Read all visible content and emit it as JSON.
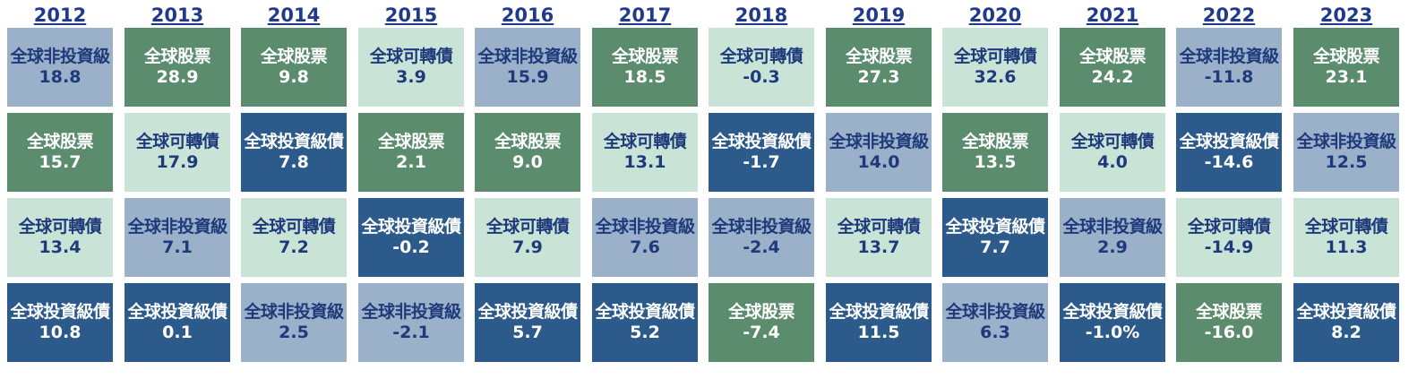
{
  "chart_data": {
    "type": "table",
    "years": [
      "2012",
      "2013",
      "2014",
      "2015",
      "2016",
      "2017",
      "2018",
      "2019",
      "2020",
      "2021",
      "2022",
      "2023"
    ],
    "colors": {
      "全球股票": "#5b8c6e",
      "全球可轉債": "#c9e4d7",
      "全球非投資級": "#9bb0c9",
      "全球投資級債": "#2c5a8a"
    },
    "columns": [
      [
        {
          "name": "全球非投資級",
          "value": "18.8"
        },
        {
          "name": "全球股票",
          "value": "15.7"
        },
        {
          "name": "全球可轉債",
          "value": "13.4"
        },
        {
          "name": "全球投資級債",
          "value": "10.8"
        }
      ],
      [
        {
          "name": "全球股票",
          "value": "28.9"
        },
        {
          "name": "全球可轉債",
          "value": "17.9"
        },
        {
          "name": "全球非投資級",
          "value": "7.1"
        },
        {
          "name": "全球投資級債",
          "value": "0.1"
        }
      ],
      [
        {
          "name": "全球股票",
          "value": "9.8"
        },
        {
          "name": "全球投資級債",
          "value": "7.8"
        },
        {
          "name": "全球可轉債",
          "value": "7.2"
        },
        {
          "name": "全球非投資級",
          "value": "2.5"
        }
      ],
      [
        {
          "name": "全球可轉債",
          "value": "3.9"
        },
        {
          "name": "全球股票",
          "value": "2.1"
        },
        {
          "name": "全球投資級債",
          "value": "-0.2"
        },
        {
          "name": "全球非投資級",
          "value": "-2.1"
        }
      ],
      [
        {
          "name": "全球非投資級",
          "value": "15.9"
        },
        {
          "name": "全球股票",
          "value": "9.0"
        },
        {
          "name": "全球可轉債",
          "value": "7.9"
        },
        {
          "name": "全球投資級債",
          "value": "5.7"
        }
      ],
      [
        {
          "name": "全球股票",
          "value": "18.5"
        },
        {
          "name": "全球可轉債",
          "value": "13.1"
        },
        {
          "name": "全球非投資級",
          "value": "7.6"
        },
        {
          "name": "全球投資級債",
          "value": "5.2"
        }
      ],
      [
        {
          "name": "全球可轉債",
          "value": "-0.3"
        },
        {
          "name": "全球投資級債",
          "value": "-1.7"
        },
        {
          "name": "全球非投資級",
          "value": "-2.4"
        },
        {
          "name": "全球股票",
          "value": "-7.4"
        }
      ],
      [
        {
          "name": "全球股票",
          "value": "27.3"
        },
        {
          "name": "全球非投資級",
          "value": "14.0"
        },
        {
          "name": "全球可轉債",
          "value": "13.7"
        },
        {
          "name": "全球投資級債",
          "value": "11.5"
        }
      ],
      [
        {
          "name": "全球可轉債",
          "value": "32.6"
        },
        {
          "name": "全球股票",
          "value": "13.5"
        },
        {
          "name": "全球投資級債",
          "value": "7.7"
        },
        {
          "name": "全球非投資級",
          "value": "6.3"
        }
      ],
      [
        {
          "name": "全球股票",
          "value": "24.2"
        },
        {
          "name": "全球可轉債",
          "value": "4.0"
        },
        {
          "name": "全球非投資級",
          "value": "2.9"
        },
        {
          "name": "全球投資級債",
          "value": "-1.0%"
        }
      ],
      [
        {
          "name": "全球非投資級",
          "value": "-11.8"
        },
        {
          "name": "全球投資級債",
          "value": "-14.6"
        },
        {
          "name": "全球可轉債",
          "value": "-14.9"
        },
        {
          "name": "全球股票",
          "value": "-16.0"
        }
      ],
      [
        {
          "name": "全球股票",
          "value": "23.1"
        },
        {
          "name": "全球非投資級",
          "value": "12.5"
        },
        {
          "name": "全球可轉債",
          "value": "11.3"
        },
        {
          "name": "全球投資級債",
          "value": "8.2"
        }
      ]
    ]
  }
}
